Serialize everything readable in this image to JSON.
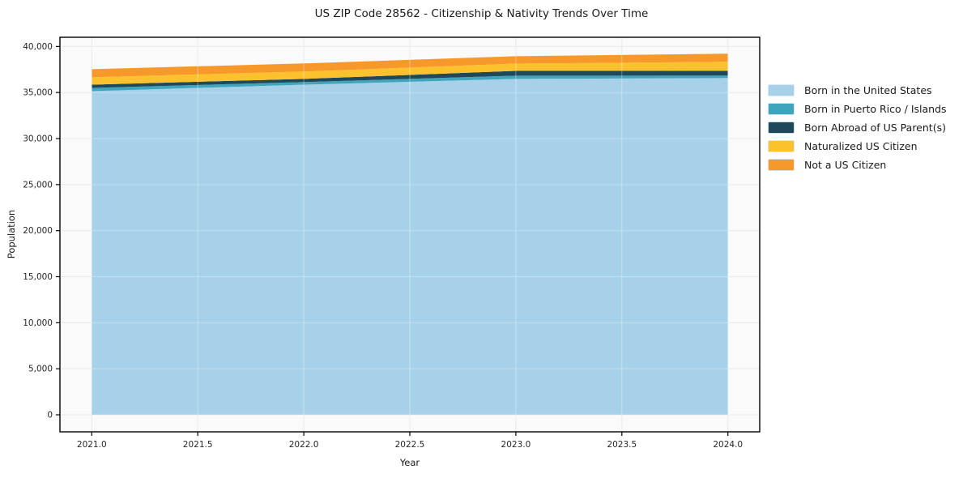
{
  "title": "US ZIP Code 28562 - Citizenship & Nativity Trends Over Time",
  "chart_data": {
    "type": "area",
    "stacked": true,
    "title": "US ZIP Code 28562 - Citizenship & Nativity Trends Over Time",
    "xlabel": "Year",
    "ylabel": "Population",
    "x": [
      2021,
      2022,
      2023,
      2024
    ],
    "series": [
      {
        "name": "Born in the United States",
        "color": "#a6d1e8",
        "values": [
          35150,
          35850,
          36480,
          36570
        ]
      },
      {
        "name": "Born in Puerto Rico / Islands",
        "color": "#3fa5bd",
        "values": [
          350,
          280,
          350,
          270
        ]
      },
      {
        "name": "Born Abroad of US Parent(s)",
        "color": "#1f4859",
        "values": [
          350,
          350,
          520,
          520
        ]
      },
      {
        "name": "Naturalized US Citizen",
        "color": "#fcc22d",
        "values": [
          800,
          800,
          790,
          970
        ]
      },
      {
        "name": "Not a US Citizen",
        "color": "#f7982a",
        "values": [
          880,
          880,
          800,
          880
        ]
      }
    ],
    "stacked_totals": [
      37530,
      38160,
      38940,
      39210
    ],
    "xlim": [
      2020.85,
      2024.15
    ],
    "ylim": [
      -1850,
      41000
    ],
    "xticks": {
      "values": [
        2021.0,
        2021.5,
        2022.0,
        2022.5,
        2023.0,
        2023.5,
        2024.0
      ],
      "labels": [
        "2021.0",
        "2021.5",
        "2022.0",
        "2022.5",
        "2023.0",
        "2023.5",
        "2024.0"
      ]
    },
    "yticks": {
      "values": [
        0,
        5000,
        10000,
        15000,
        20000,
        25000,
        30000,
        35000,
        40000
      ],
      "labels": [
        "0",
        "5,000",
        "10,000",
        "15,000",
        "20,000",
        "25,000",
        "30,000",
        "35,000",
        "40,000"
      ]
    },
    "grid": true,
    "legend_position": "right outside",
    "plot_background": "#fafafa",
    "grid_color": "#e1e1e1",
    "spine_color": "#000000"
  }
}
